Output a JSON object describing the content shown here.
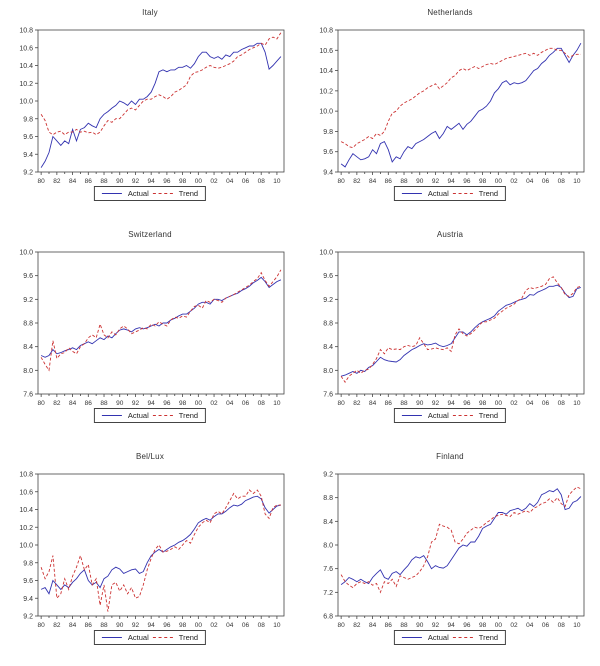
{
  "page": {
    "background": "#ffffff"
  },
  "colors": {
    "actual": "#3333b0",
    "trend": "#cc3333",
    "axis": "#444444",
    "text": "#333333"
  },
  "chart_data": [
    {
      "type": "line",
      "title": "Italy",
      "xlim": [
        1979.6,
        2010.9
      ],
      "ylim": [
        9.2,
        10.8
      ],
      "ytick_step": 0.2,
      "x_start": 1980,
      "x_step": 0.5,
      "x_labels": [
        "80",
        "82",
        "84",
        "86",
        "88",
        "90",
        "92",
        "94",
        "96",
        "98",
        "00",
        "02",
        "04",
        "06",
        "08",
        "10"
      ],
      "series": [
        {
          "name": "Actual",
          "style": "solid",
          "color": "#3333b0",
          "values": [
            9.25,
            9.32,
            9.42,
            9.6,
            9.55,
            9.5,
            9.55,
            9.52,
            9.68,
            9.55,
            9.68,
            9.7,
            9.75,
            9.72,
            9.7,
            9.8,
            9.85,
            9.88,
            9.92,
            9.95,
            10.0,
            9.98,
            9.95,
            10.0,
            9.96,
            10.02,
            10.02,
            10.05,
            10.1,
            10.2,
            10.33,
            10.35,
            10.33,
            10.35,
            10.35,
            10.38,
            10.38,
            10.4,
            10.37,
            10.42,
            10.5,
            10.55,
            10.55,
            10.5,
            10.48,
            10.5,
            10.47,
            10.52,
            10.5,
            10.55,
            10.55,
            10.58,
            10.6,
            10.62,
            10.62,
            10.65,
            10.65,
            10.55,
            10.36,
            10.4,
            10.45,
            10.5
          ]
        },
        {
          "name": "Trend",
          "style": "dashed",
          "color": "#cc3333",
          "values": [
            9.85,
            9.78,
            9.65,
            9.62,
            9.65,
            9.66,
            9.62,
            9.65,
            9.65,
            9.68,
            9.65,
            9.66,
            9.64,
            9.65,
            9.62,
            9.65,
            9.72,
            9.78,
            9.76,
            9.8,
            9.8,
            9.85,
            9.9,
            9.92,
            9.9,
            9.95,
            10.0,
            10.02,
            10.02,
            10.05,
            10.07,
            10.05,
            10.02,
            10.05,
            10.1,
            10.12,
            10.15,
            10.18,
            10.28,
            10.32,
            10.33,
            10.35,
            10.38,
            10.4,
            10.38,
            10.37,
            10.38,
            10.4,
            10.42,
            10.45,
            10.5,
            10.52,
            10.55,
            10.58,
            10.6,
            10.62,
            10.65,
            10.63,
            10.7,
            10.72,
            10.7,
            10.77
          ]
        }
      ]
    },
    {
      "type": "line",
      "title": "Netherlands",
      "xlim": [
        1979.6,
        2010.9
      ],
      "ylim": [
        9.4,
        10.8
      ],
      "ytick_step": 0.2,
      "x_start": 1980,
      "x_step": 0.5,
      "x_labels": [
        "80",
        "82",
        "84",
        "86",
        "88",
        "90",
        "92",
        "94",
        "96",
        "98",
        "00",
        "02",
        "04",
        "06",
        "08",
        "10"
      ],
      "series": [
        {
          "name": "Actual",
          "style": "solid",
          "color": "#3333b0",
          "values": [
            9.48,
            9.45,
            9.52,
            9.58,
            9.55,
            9.52,
            9.53,
            9.55,
            9.62,
            9.58,
            9.68,
            9.7,
            9.62,
            9.5,
            9.55,
            9.53,
            9.6,
            9.65,
            9.63,
            9.68,
            9.7,
            9.72,
            9.75,
            9.78,
            9.8,
            9.73,
            9.78,
            9.85,
            9.82,
            9.85,
            9.88,
            9.82,
            9.87,
            9.9,
            9.95,
            10.0,
            10.02,
            10.05,
            10.1,
            10.18,
            10.22,
            10.28,
            10.3,
            10.26,
            10.28,
            10.27,
            10.28,
            10.3,
            10.35,
            10.4,
            10.42,
            10.47,
            10.5,
            10.55,
            10.58,
            10.62,
            10.62,
            10.55,
            10.48,
            10.55,
            10.6,
            10.67
          ]
        },
        {
          "name": "Trend",
          "style": "dashed",
          "color": "#cc3333",
          "values": [
            9.7,
            9.68,
            9.65,
            9.64,
            9.68,
            9.7,
            9.72,
            9.75,
            9.73,
            9.78,
            9.76,
            9.8,
            9.9,
            9.98,
            10.0,
            10.05,
            10.08,
            10.1,
            10.12,
            10.15,
            10.18,
            10.2,
            10.23,
            10.25,
            10.27,
            10.22,
            10.25,
            10.28,
            10.33,
            10.35,
            10.4,
            10.42,
            10.4,
            10.42,
            10.44,
            10.42,
            10.44,
            10.46,
            10.47,
            10.46,
            10.48,
            10.5,
            10.52,
            10.53,
            10.54,
            10.55,
            10.56,
            10.57,
            10.55,
            10.57,
            10.55,
            10.58,
            10.6,
            10.62,
            10.62,
            10.6,
            10.6,
            10.57,
            10.53,
            10.55,
            10.56,
            10.56
          ]
        }
      ]
    },
    {
      "type": "line",
      "title": "Switzerland",
      "xlim": [
        1979.6,
        2010.9
      ],
      "ylim": [
        7.6,
        10.0
      ],
      "ytick_step": 0.4,
      "x_start": 1980,
      "x_step": 0.5,
      "x_labels": [
        "80",
        "82",
        "84",
        "86",
        "88",
        "90",
        "92",
        "94",
        "96",
        "98",
        "00",
        "02",
        "04",
        "06",
        "08",
        "10"
      ],
      "series": [
        {
          "name": "Actual",
          "style": "solid",
          "color": "#3333b0",
          "values": [
            8.25,
            8.22,
            8.25,
            8.35,
            8.28,
            8.3,
            8.33,
            8.35,
            8.38,
            8.35,
            8.42,
            8.45,
            8.48,
            8.45,
            8.5,
            8.55,
            8.52,
            8.58,
            8.55,
            8.62,
            8.68,
            8.7,
            8.68,
            8.65,
            8.7,
            8.72,
            8.7,
            8.72,
            8.75,
            8.78,
            8.75,
            8.8,
            8.8,
            8.85,
            8.88,
            8.92,
            8.95,
            8.95,
            9.0,
            9.05,
            9.12,
            9.15,
            9.15,
            9.12,
            9.2,
            9.2,
            9.18,
            9.22,
            9.25,
            9.28,
            9.3,
            9.35,
            9.38,
            9.42,
            9.48,
            9.52,
            9.57,
            9.5,
            9.4,
            9.45,
            9.5,
            9.53
          ]
        },
        {
          "name": "Trend",
          "style": "dashed",
          "color": "#cc3333",
          "values": [
            8.22,
            8.1,
            8.0,
            8.5,
            8.2,
            8.28,
            8.3,
            8.38,
            8.32,
            8.28,
            8.4,
            8.45,
            8.55,
            8.6,
            8.55,
            8.78,
            8.6,
            8.55,
            8.65,
            8.6,
            8.7,
            8.75,
            8.7,
            8.62,
            8.65,
            8.68,
            8.72,
            8.7,
            8.78,
            8.75,
            8.82,
            8.78,
            8.75,
            8.85,
            8.9,
            8.88,
            8.92,
            8.9,
            9.0,
            9.08,
            9.1,
            9.05,
            9.18,
            9.15,
            9.2,
            9.18,
            9.15,
            9.22,
            9.25,
            9.28,
            9.32,
            9.36,
            9.4,
            9.44,
            9.5,
            9.55,
            9.65,
            9.52,
            9.42,
            9.5,
            9.58,
            9.7
          ]
        }
      ]
    },
    {
      "type": "line",
      "title": "Austria",
      "xlim": [
        1979.6,
        2010.9
      ],
      "ylim": [
        7.6,
        10.0
      ],
      "ytick_step": 0.4,
      "x_start": 1980,
      "x_step": 0.5,
      "x_labels": [
        "80",
        "82",
        "84",
        "86",
        "88",
        "90",
        "92",
        "94",
        "96",
        "98",
        "00",
        "02",
        "04",
        "06",
        "08",
        "10"
      ],
      "series": [
        {
          "name": "Actual",
          "style": "solid",
          "color": "#3333b0",
          "values": [
            7.9,
            7.92,
            7.95,
            7.98,
            7.95,
            8.0,
            7.98,
            8.05,
            8.08,
            8.15,
            8.22,
            8.18,
            8.16,
            8.15,
            8.14,
            8.18,
            8.25,
            8.3,
            8.35,
            8.38,
            8.42,
            8.45,
            8.43,
            8.44,
            8.46,
            8.42,
            8.4,
            8.42,
            8.45,
            8.55,
            8.65,
            8.65,
            8.6,
            8.65,
            8.72,
            8.78,
            8.82,
            8.85,
            8.88,
            8.92,
            9.0,
            9.05,
            9.1,
            9.12,
            9.15,
            9.18,
            9.2,
            9.22,
            9.28,
            9.27,
            9.32,
            9.35,
            9.38,
            9.42,
            9.42,
            9.44,
            9.4,
            9.3,
            9.23,
            9.25,
            9.38,
            9.4
          ]
        },
        {
          "name": "Trend",
          "style": "dashed",
          "color": "#cc3333",
          "values": [
            7.9,
            7.8,
            7.9,
            7.95,
            8.0,
            7.95,
            8.0,
            8.02,
            8.1,
            8.2,
            8.35,
            8.28,
            8.38,
            8.35,
            8.36,
            8.35,
            8.4,
            8.42,
            8.4,
            8.42,
            8.55,
            8.45,
            8.35,
            8.36,
            8.38,
            8.36,
            8.35,
            8.38,
            8.32,
            8.6,
            8.7,
            8.62,
            8.58,
            8.62,
            8.68,
            8.75,
            8.82,
            8.82,
            8.85,
            8.88,
            8.95,
            9.0,
            9.05,
            9.08,
            9.12,
            9.18,
            9.22,
            9.35,
            9.4,
            9.38,
            9.4,
            9.42,
            9.45,
            9.55,
            9.58,
            9.48,
            9.4,
            9.28,
            9.25,
            9.3,
            9.4,
            9.42
          ]
        }
      ]
    },
    {
      "type": "line",
      "title": "Bel/Lux",
      "xlim": [
        1979.6,
        2010.9
      ],
      "ylim": [
        9.2,
        10.8
      ],
      "ytick_step": 0.2,
      "x_start": 1980,
      "x_step": 0.5,
      "x_labels": [
        "80",
        "82",
        "84",
        "86",
        "88",
        "90",
        "92",
        "94",
        "96",
        "98",
        "00",
        "02",
        "04",
        "06",
        "08",
        "10"
      ],
      "series": [
        {
          "name": "Actual",
          "style": "solid",
          "color": "#3333b0",
          "values": [
            9.5,
            9.52,
            9.45,
            9.6,
            9.55,
            9.5,
            9.55,
            9.52,
            9.58,
            9.62,
            9.68,
            9.72,
            9.6,
            9.55,
            9.58,
            9.52,
            9.62,
            9.65,
            9.72,
            9.75,
            9.73,
            9.68,
            9.7,
            9.72,
            9.73,
            9.68,
            9.7,
            9.8,
            9.88,
            9.92,
            9.95,
            9.92,
            9.95,
            9.98,
            10.0,
            10.03,
            10.05,
            10.08,
            10.12,
            10.18,
            10.25,
            10.28,
            10.3,
            10.28,
            10.32,
            10.35,
            10.35,
            10.38,
            10.42,
            10.45,
            10.44,
            10.46,
            10.5,
            10.52,
            10.54,
            10.55,
            10.52,
            10.42,
            10.36,
            10.4,
            10.44,
            10.45
          ]
        },
        {
          "name": "Trend",
          "style": "dashed",
          "color": "#cc3333",
          "values": [
            9.75,
            9.62,
            9.7,
            9.88,
            9.4,
            9.45,
            9.62,
            9.5,
            9.65,
            9.75,
            9.88,
            9.72,
            9.78,
            9.55,
            9.62,
            9.32,
            9.55,
            9.25,
            9.55,
            9.58,
            9.48,
            9.55,
            9.45,
            9.52,
            9.4,
            9.42,
            9.55,
            9.72,
            9.85,
            9.95,
            10.0,
            9.92,
            9.93,
            9.95,
            9.98,
            9.95,
            10.0,
            10.05,
            10.02,
            10.12,
            10.2,
            10.25,
            10.28,
            10.25,
            10.35,
            10.38,
            10.35,
            10.42,
            10.5,
            10.58,
            10.52,
            10.55,
            10.55,
            10.62,
            10.58,
            10.62,
            10.55,
            10.35,
            10.3,
            10.42,
            10.45,
            10.45
          ]
        }
      ]
    },
    {
      "type": "line",
      "title": "Finland",
      "xlim": [
        1979.6,
        2010.9
      ],
      "ylim": [
        6.8,
        9.2
      ],
      "ytick_step": 0.4,
      "x_start": 1980,
      "x_step": 0.5,
      "x_labels": [
        "80",
        "82",
        "84",
        "86",
        "88",
        "90",
        "92",
        "94",
        "96",
        "98",
        "00",
        "02",
        "04",
        "06",
        "08",
        "10"
      ],
      "series": [
        {
          "name": "Actual",
          "style": "solid",
          "color": "#3333b0",
          "values": [
            7.33,
            7.38,
            7.45,
            7.42,
            7.38,
            7.42,
            7.38,
            7.35,
            7.45,
            7.52,
            7.58,
            7.45,
            7.42,
            7.52,
            7.55,
            7.5,
            7.58,
            7.65,
            7.75,
            7.8,
            7.78,
            7.82,
            7.72,
            7.6,
            7.65,
            7.62,
            7.61,
            7.65,
            7.75,
            7.85,
            7.95,
            8.0,
            7.98,
            8.05,
            8.05,
            8.15,
            8.28,
            8.32,
            8.35,
            8.45,
            8.55,
            8.55,
            8.52,
            8.58,
            8.6,
            8.62,
            8.58,
            8.62,
            8.7,
            8.65,
            8.72,
            8.85,
            8.88,
            8.92,
            8.9,
            8.95,
            8.85,
            8.6,
            8.62,
            8.72,
            8.75,
            8.82
          ]
        },
        {
          "name": "Trend",
          "style": "dashed",
          "color": "#cc3333",
          "values": [
            7.5,
            7.38,
            7.32,
            7.28,
            7.35,
            7.38,
            7.35,
            7.38,
            7.32,
            7.35,
            7.2,
            7.38,
            7.35,
            7.42,
            7.3,
            7.48,
            7.45,
            7.42,
            7.45,
            7.48,
            7.55,
            7.65,
            7.8,
            8.05,
            8.1,
            8.35,
            8.32,
            8.3,
            8.25,
            8.05,
            8.02,
            8.1,
            8.2,
            8.25,
            8.3,
            8.28,
            8.32,
            8.38,
            8.42,
            8.48,
            8.5,
            8.52,
            8.5,
            8.48,
            8.55,
            8.52,
            8.55,
            8.58,
            8.55,
            8.62,
            8.65,
            8.7,
            8.72,
            8.78,
            8.72,
            8.8,
            8.7,
            8.65,
            8.85,
            8.92,
            8.98,
            8.95
          ]
        }
      ]
    }
  ]
}
